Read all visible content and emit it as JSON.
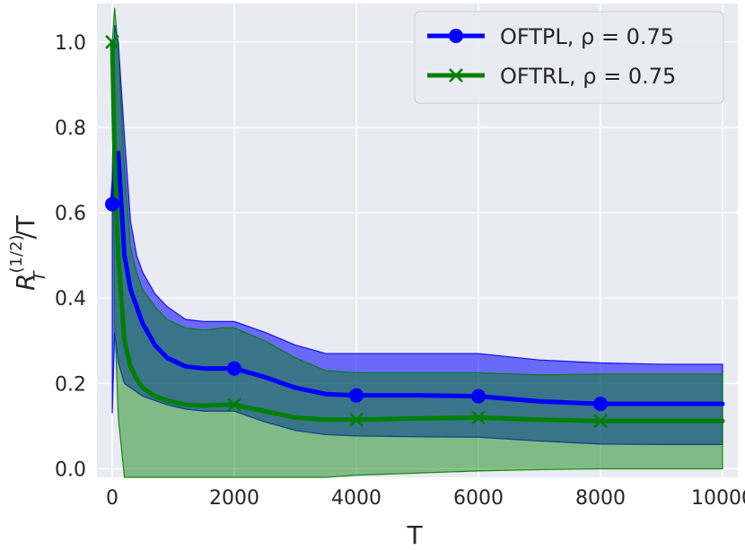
{
  "chart_data": {
    "type": "line",
    "xlabel": "T",
    "ylabel": "R_T^{(1/2)}/T",
    "ylabel_parts": {
      "base": "R",
      "sub": "T",
      "sup": "(1/2)",
      "tail": "/T"
    },
    "xlim": [
      -250,
      10250
    ],
    "ylim": [
      -0.02,
      1.09
    ],
    "xticks": [
      0,
      2000,
      4000,
      6000,
      8000,
      10000
    ],
    "xtick_labels": [
      "0",
      "2000",
      "4000",
      "6000",
      "8000",
      "10000"
    ],
    "yticks": [
      0.0,
      0.2,
      0.4,
      0.6,
      0.8,
      1.0
    ],
    "ytick_labels": [
      "0.0",
      "0.2",
      "0.4",
      "0.6",
      "0.8",
      "1.0"
    ],
    "grid": true,
    "legend_position": "top-right",
    "colors": {
      "background": "#eaeaf2",
      "grid": "#ffffff",
      "OFTPL": "#0000ff",
      "OFTRL": "#008000",
      "band_overlap": "#2e6a6e"
    },
    "series": [
      {
        "name": "OFTPL, ρ = 0.75",
        "name_rho_label": "OFTPL, ρ = 0.75",
        "color": "#0000ff",
        "marker": "circle",
        "markers_x": [
          1,
          2000,
          4000,
          6000,
          8000
        ],
        "x": [
          1,
          40,
          100,
          200,
          300,
          400,
          500,
          700,
          900,
          1200,
          1500,
          1800,
          2000,
          2500,
          3000,
          3500,
          4000,
          5000,
          6000,
          7000,
          8000,
          9000,
          10000
        ],
        "y": [
          0.62,
          0.7,
          0.74,
          0.5,
          0.42,
          0.38,
          0.34,
          0.29,
          0.26,
          0.24,
          0.235,
          0.235,
          0.235,
          0.215,
          0.19,
          0.175,
          0.172,
          0.172,
          0.17,
          0.158,
          0.152,
          0.152,
          0.152
        ],
        "upper": [
          0.68,
          1.04,
          1.0,
          0.78,
          0.58,
          0.5,
          0.46,
          0.41,
          0.38,
          0.35,
          0.345,
          0.345,
          0.345,
          0.32,
          0.29,
          0.27,
          0.27,
          0.27,
          0.27,
          0.255,
          0.248,
          0.245,
          0.245
        ],
        "lower": [
          0.13,
          0.32,
          0.25,
          0.2,
          0.19,
          0.18,
          0.17,
          0.16,
          0.15,
          0.14,
          0.135,
          0.135,
          0.135,
          0.11,
          0.09,
          0.08,
          0.077,
          0.075,
          0.074,
          0.065,
          0.058,
          0.057,
          0.057
        ]
      },
      {
        "name": "OFTRL, ρ = 0.75",
        "color": "#008000",
        "marker": "x",
        "markers_x": [
          1,
          2000,
          4000,
          6000,
          8000
        ],
        "x": [
          1,
          40,
          100,
          200,
          300,
          400,
          500,
          700,
          900,
          1200,
          1500,
          1800,
          2000,
          2500,
          3000,
          3500,
          4000,
          5000,
          6000,
          7000,
          8000,
          9000,
          10000
        ],
        "y": [
          1.0,
          0.72,
          0.5,
          0.3,
          0.24,
          0.21,
          0.19,
          0.17,
          0.16,
          0.15,
          0.148,
          0.15,
          0.15,
          0.135,
          0.12,
          0.115,
          0.115,
          0.118,
          0.12,
          0.115,
          0.112,
          0.112,
          0.112
        ],
        "upper": [
          1.0,
          1.08,
          0.98,
          0.7,
          0.52,
          0.46,
          0.42,
          0.38,
          0.35,
          0.33,
          0.325,
          0.33,
          0.33,
          0.3,
          0.26,
          0.23,
          0.225,
          0.225,
          0.225,
          0.22,
          0.222,
          0.222,
          0.222
        ],
        "lower": [
          0.95,
          0.35,
          0.12,
          -0.02,
          -0.02,
          -0.02,
          -0.02,
          -0.02,
          -0.02,
          -0.02,
          -0.02,
          -0.02,
          -0.02,
          -0.02,
          -0.02,
          -0.02,
          -0.015,
          -0.01,
          -0.005,
          -0.002,
          0.0,
          0.0,
          0.0
        ]
      }
    ]
  }
}
